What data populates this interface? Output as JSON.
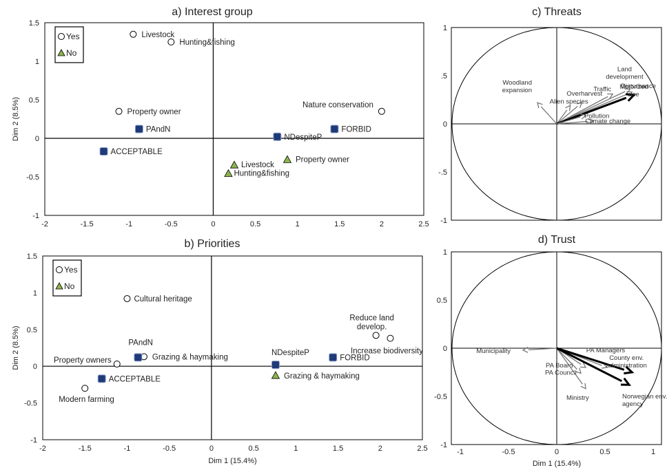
{
  "colors": {
    "yes_fill": "#ffffff",
    "no_fill": "#8db54d",
    "supp_fill": "#1f3a78",
    "arrow_grey": "#777777",
    "arrow_black": "#000000"
  },
  "chart_data": [
    {
      "id": "a",
      "type": "scatter",
      "title": "a) Interest group",
      "xlabel": "",
      "ylabel": "Dim 2 (8.5%)",
      "xlim": [
        -2,
        2.5
      ],
      "ylim": [
        -1,
        1.5
      ],
      "xticks": [
        "-2",
        "-1.5",
        "-1",
        "-0.5",
        "0",
        "0.5",
        "1",
        "1.5",
        "2",
        "2.5"
      ],
      "yticks": [
        "1.5",
        "1",
        "0.5",
        "0",
        "-0.5",
        "-1"
      ],
      "legend": {
        "position": "top-left",
        "entries": [
          {
            "marker": "circle",
            "label": "Yes"
          },
          {
            "marker": "triangle",
            "label": "No"
          }
        ]
      },
      "points": [
        {
          "label": "Livestock",
          "x": -0.95,
          "y": 1.35,
          "marker": "circle"
        },
        {
          "label": "Hunting&fishing",
          "x": -0.5,
          "y": 1.25,
          "marker": "circle"
        },
        {
          "label": "Property owner",
          "x": -1.12,
          "y": 0.35,
          "marker": "circle"
        },
        {
          "label": "Nature conservation",
          "x": 2.0,
          "y": 0.35,
          "marker": "circle"
        },
        {
          "label": "Livestock",
          "x": 0.25,
          "y": -0.35,
          "marker": "triangle"
        },
        {
          "label": "Hunting&fishing",
          "x": 0.18,
          "y": -0.46,
          "marker": "triangle"
        },
        {
          "label": "Property owner",
          "x": 0.88,
          "y": -0.28,
          "marker": "triangle"
        },
        {
          "label": "PAndN",
          "x": -0.88,
          "y": 0.12,
          "marker": "square"
        },
        {
          "label": "ACCEPTABLE",
          "x": -1.3,
          "y": -0.17,
          "marker": "square"
        },
        {
          "label": "NDespiteP",
          "x": 0.76,
          "y": 0.02,
          "marker": "square"
        },
        {
          "label": "FORBID",
          "x": 1.44,
          "y": 0.12,
          "marker": "square"
        }
      ]
    },
    {
      "id": "b",
      "type": "scatter",
      "title": "b) Priorities",
      "xlabel": "Dim 1 (15.4%)",
      "ylabel": "Dim 2 (8.5%)",
      "xlim": [
        -2,
        2.5
      ],
      "ylim": [
        -1,
        1.5
      ],
      "xticks": [
        "-2",
        "-1.5",
        "-1",
        "-0.5",
        "0",
        "0.5",
        "1",
        "1.5",
        "2",
        "2.5"
      ],
      "yticks": [
        "1.5",
        "1",
        "0.5",
        "0",
        "-0.5",
        "-1"
      ],
      "legend": {
        "position": "top-left",
        "entries": [
          {
            "marker": "circle",
            "label": "Yes"
          },
          {
            "marker": "triangle",
            "label": "No"
          }
        ]
      },
      "points": [
        {
          "label": "Cultural heritage",
          "x": -1.0,
          "y": 0.92,
          "marker": "circle"
        },
        {
          "label": "Grazing & haymaking",
          "x": -0.8,
          "y": 0.13,
          "marker": "circle"
        },
        {
          "label": "Property owners",
          "x": -1.12,
          "y": 0.03,
          "marker": "circle"
        },
        {
          "label": "Modern farming",
          "x": -1.5,
          "y": -0.3,
          "marker": "circle"
        },
        {
          "label": "Reduce land develop.",
          "x": 1.95,
          "y": 0.42,
          "marker": "circle"
        },
        {
          "label": "Increase biodiversity",
          "x": 2.12,
          "y": 0.38,
          "marker": "circle"
        },
        {
          "label": "Grazing & haymaking",
          "x": 0.76,
          "y": -0.13,
          "marker": "triangle"
        },
        {
          "label": "PAndN",
          "x": -0.87,
          "y": 0.12,
          "marker": "square"
        },
        {
          "label": "ACCEPTABLE",
          "x": -1.3,
          "y": -0.17,
          "marker": "square"
        },
        {
          "label": "NDespiteP",
          "x": 0.76,
          "y": 0.02,
          "marker": "square"
        },
        {
          "label": "FORBID",
          "x": 1.44,
          "y": 0.12,
          "marker": "square"
        }
      ]
    },
    {
      "id": "c",
      "type": "vector",
      "title": "c) Threats",
      "xlabel": "",
      "ylabel": "",
      "xlim": [
        -1,
        1
      ],
      "ylim": [
        -1,
        1
      ],
      "xticks": [],
      "yticks": [
        "1",
        ".5",
        "0",
        "-.5",
        "-1"
      ],
      "vectors": [
        {
          "label": "Woodland expansion",
          "x": -0.2,
          "y": 0.22,
          "weight": "normal"
        },
        {
          "label": "Overharvest",
          "x": 0.26,
          "y": 0.22,
          "weight": "normal"
        },
        {
          "label": "Alien species",
          "x": 0.14,
          "y": 0.19,
          "weight": "normal"
        },
        {
          "label": "Traffic",
          "x": 0.58,
          "y": 0.31,
          "weight": "normal"
        },
        {
          "label": "Land development",
          "x": 0.76,
          "y": 0.36,
          "weight": "normal"
        },
        {
          "label": "Disturbance",
          "x": 0.78,
          "y": 0.33,
          "weight": "normal"
        },
        {
          "label": "Motorized use",
          "x": 0.8,
          "y": 0.3,
          "weight": "bold"
        },
        {
          "label": "Pollution",
          "x": 0.3,
          "y": 0.09,
          "weight": "normal"
        },
        {
          "label": "Climate change",
          "x": 0.38,
          "y": 0.03,
          "weight": "normal"
        }
      ]
    },
    {
      "id": "d",
      "type": "vector",
      "title": "d) Trust",
      "xlabel": "Dim 1 (15.4%)",
      "ylabel": "",
      "xlim": [
        -1,
        1
      ],
      "ylim": [
        -1,
        1
      ],
      "xticks": [
        "-1",
        "-0.5",
        "0",
        "0.5",
        "1"
      ],
      "yticks": [
        "1",
        "0.5",
        "0",
        "-0.5",
        "-1"
      ],
      "vectors": [
        {
          "label": "Municipality",
          "x": -0.35,
          "y": -0.02,
          "weight": "normal"
        },
        {
          "label": "PA Managers",
          "x": 0.52,
          "y": -0.2,
          "weight": "normal"
        },
        {
          "label": "PA Board",
          "x": 0.3,
          "y": -0.2,
          "weight": "normal"
        },
        {
          "label": "PA Council",
          "x": 0.25,
          "y": -0.26,
          "weight": "normal"
        },
        {
          "label": "Ministry",
          "x": 0.3,
          "y": -0.42,
          "weight": "normal"
        },
        {
          "label": "County env. administration",
          "x": 0.78,
          "y": -0.25,
          "weight": "bold"
        },
        {
          "label": "Norwegian env. agency",
          "x": 0.75,
          "y": -0.38,
          "weight": "bold"
        }
      ]
    }
  ]
}
